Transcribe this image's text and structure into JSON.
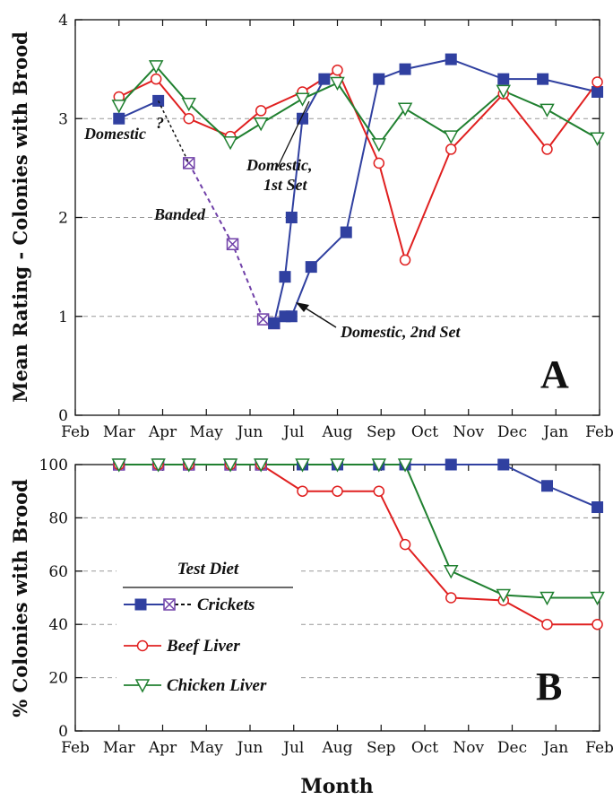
{
  "colors": {
    "crickets": "#3040a0",
    "banded": "#7040a8",
    "beef_liver": "#e02020",
    "chicken_liver": "#208030",
    "grid": "#999999",
    "axis": "#111111"
  },
  "x_axis_label": "Month",
  "month_ticks": [
    "Feb",
    "Mar",
    "Apr",
    "May",
    "Jun",
    "Jul",
    "Aug",
    "Sep",
    "Oct",
    "Nov",
    "Dec",
    "Jan",
    "Feb"
  ],
  "legend": {
    "title": "Test Diet",
    "crickets": "Crickets",
    "beef_liver": "Beef Liver",
    "chicken_liver": "Chicken Liver"
  },
  "chart_data": [
    {
      "type": "line",
      "panel_label": "A",
      "ylabel": "Mean Rating - Colonies with Brood",
      "ylim": [
        0,
        4
      ],
      "y_ticks": [
        "0",
        "1",
        "2",
        "3",
        "4"
      ],
      "xlim": [
        0,
        12
      ],
      "grid": "horizontal dashed",
      "annotations": {
        "domestic": "Domestic",
        "question": "?",
        "banded": "Banded",
        "domestic_1st_l1": "Domestic,",
        "domestic_1st_l2": "1st Set",
        "domestic_2nd": "Domestic, 2nd Set"
      },
      "series": [
        {
          "name": "Crickets",
          "key": "crickets_domestic",
          "x": [
            1.0,
            1.9
          ],
          "y": [
            3.0,
            3.18
          ]
        },
        {
          "name": "Crickets",
          "key": "crickets_banded",
          "x": [
            2.6,
            3.6,
            4.3,
            4.55
          ],
          "y": [
            2.55,
            1.73,
            0.97,
            0.93
          ]
        },
        {
          "key": "crickets_1st_set",
          "x": [
            4.55,
            4.8,
            4.95,
            5.2,
            5.7
          ],
          "y": [
            0.93,
            1.4,
            2.0,
            3.0,
            3.4
          ]
        },
        {
          "key": "crickets_2nd_set",
          "x": [
            4.8,
            4.95,
            5.4,
            6.2,
            6.95,
            7.55,
            8.6,
            9.8,
            10.7,
            11.95
          ],
          "y": [
            1.0,
            1.0,
            1.5,
            1.85,
            3.4,
            3.5,
            3.6,
            3.4,
            3.4,
            3.27
          ]
        },
        {
          "name": "Beef Liver",
          "key": "beef_liver",
          "x": [
            1.0,
            1.85,
            2.6,
            3.55,
            4.25,
            5.2,
            6.0,
            6.95,
            7.55,
            8.6,
            9.8,
            10.8,
            11.95
          ],
          "y": [
            3.22,
            3.4,
            3.0,
            2.82,
            3.08,
            3.27,
            3.49,
            2.55,
            1.57,
            2.69,
            3.25,
            2.69,
            3.37
          ]
        },
        {
          "name": "Chicken Liver",
          "key": "chicken_liver",
          "x": [
            1.0,
            1.85,
            2.6,
            3.55,
            4.25,
            5.2,
            6.0,
            6.95,
            7.55,
            8.6,
            9.8,
            10.8,
            11.95
          ],
          "y": [
            3.13,
            3.53,
            3.15,
            2.76,
            2.95,
            3.2,
            3.36,
            2.74,
            3.1,
            2.82,
            3.28,
            3.09,
            2.8
          ]
        }
      ]
    },
    {
      "type": "line",
      "panel_label": "B",
      "ylabel": "% Colonies with Brood",
      "ylim": [
        0,
        100
      ],
      "y_ticks": [
        "0",
        "20",
        "40",
        "60",
        "80",
        "100"
      ],
      "xlim": [
        0,
        12
      ],
      "grid": "horizontal dashed",
      "series": [
        {
          "name": "Crickets",
          "key": "crickets",
          "x": [
            1.0,
            1.9,
            2.6,
            3.55,
            4.25,
            5.2,
            6.0,
            6.95,
            7.55,
            8.6,
            9.8,
            10.8,
            11.95
          ],
          "y": [
            100,
            100,
            100,
            100,
            100,
            100,
            100,
            100,
            100,
            100,
            100,
            92,
            84
          ]
        },
        {
          "key": "crickets_banded",
          "x": [
            1.0,
            1.9,
            2.6,
            3.55,
            4.25
          ],
          "y": [
            100,
            100,
            100,
            100,
            100
          ]
        },
        {
          "name": "Beef Liver",
          "key": "beef_liver",
          "x": [
            1.0,
            1.9,
            2.6,
            3.55,
            4.25,
            5.2,
            6.0,
            6.95,
            7.55,
            8.6,
            9.8,
            10.8,
            11.95
          ],
          "y": [
            100,
            100,
            100,
            100,
            100,
            90,
            90,
            90,
            70,
            50,
            49,
            40,
            40
          ]
        },
        {
          "name": "Chicken Liver",
          "key": "chicken_liver",
          "x": [
            1.0,
            1.9,
            2.6,
            3.55,
            4.25,
            5.2,
            6.0,
            6.95,
            7.55,
            8.6,
            9.8,
            10.8,
            11.95
          ],
          "y": [
            100,
            100,
            100,
            100,
            100,
            100,
            100,
            100,
            100,
            60,
            51,
            50,
            50
          ]
        }
      ]
    }
  ]
}
